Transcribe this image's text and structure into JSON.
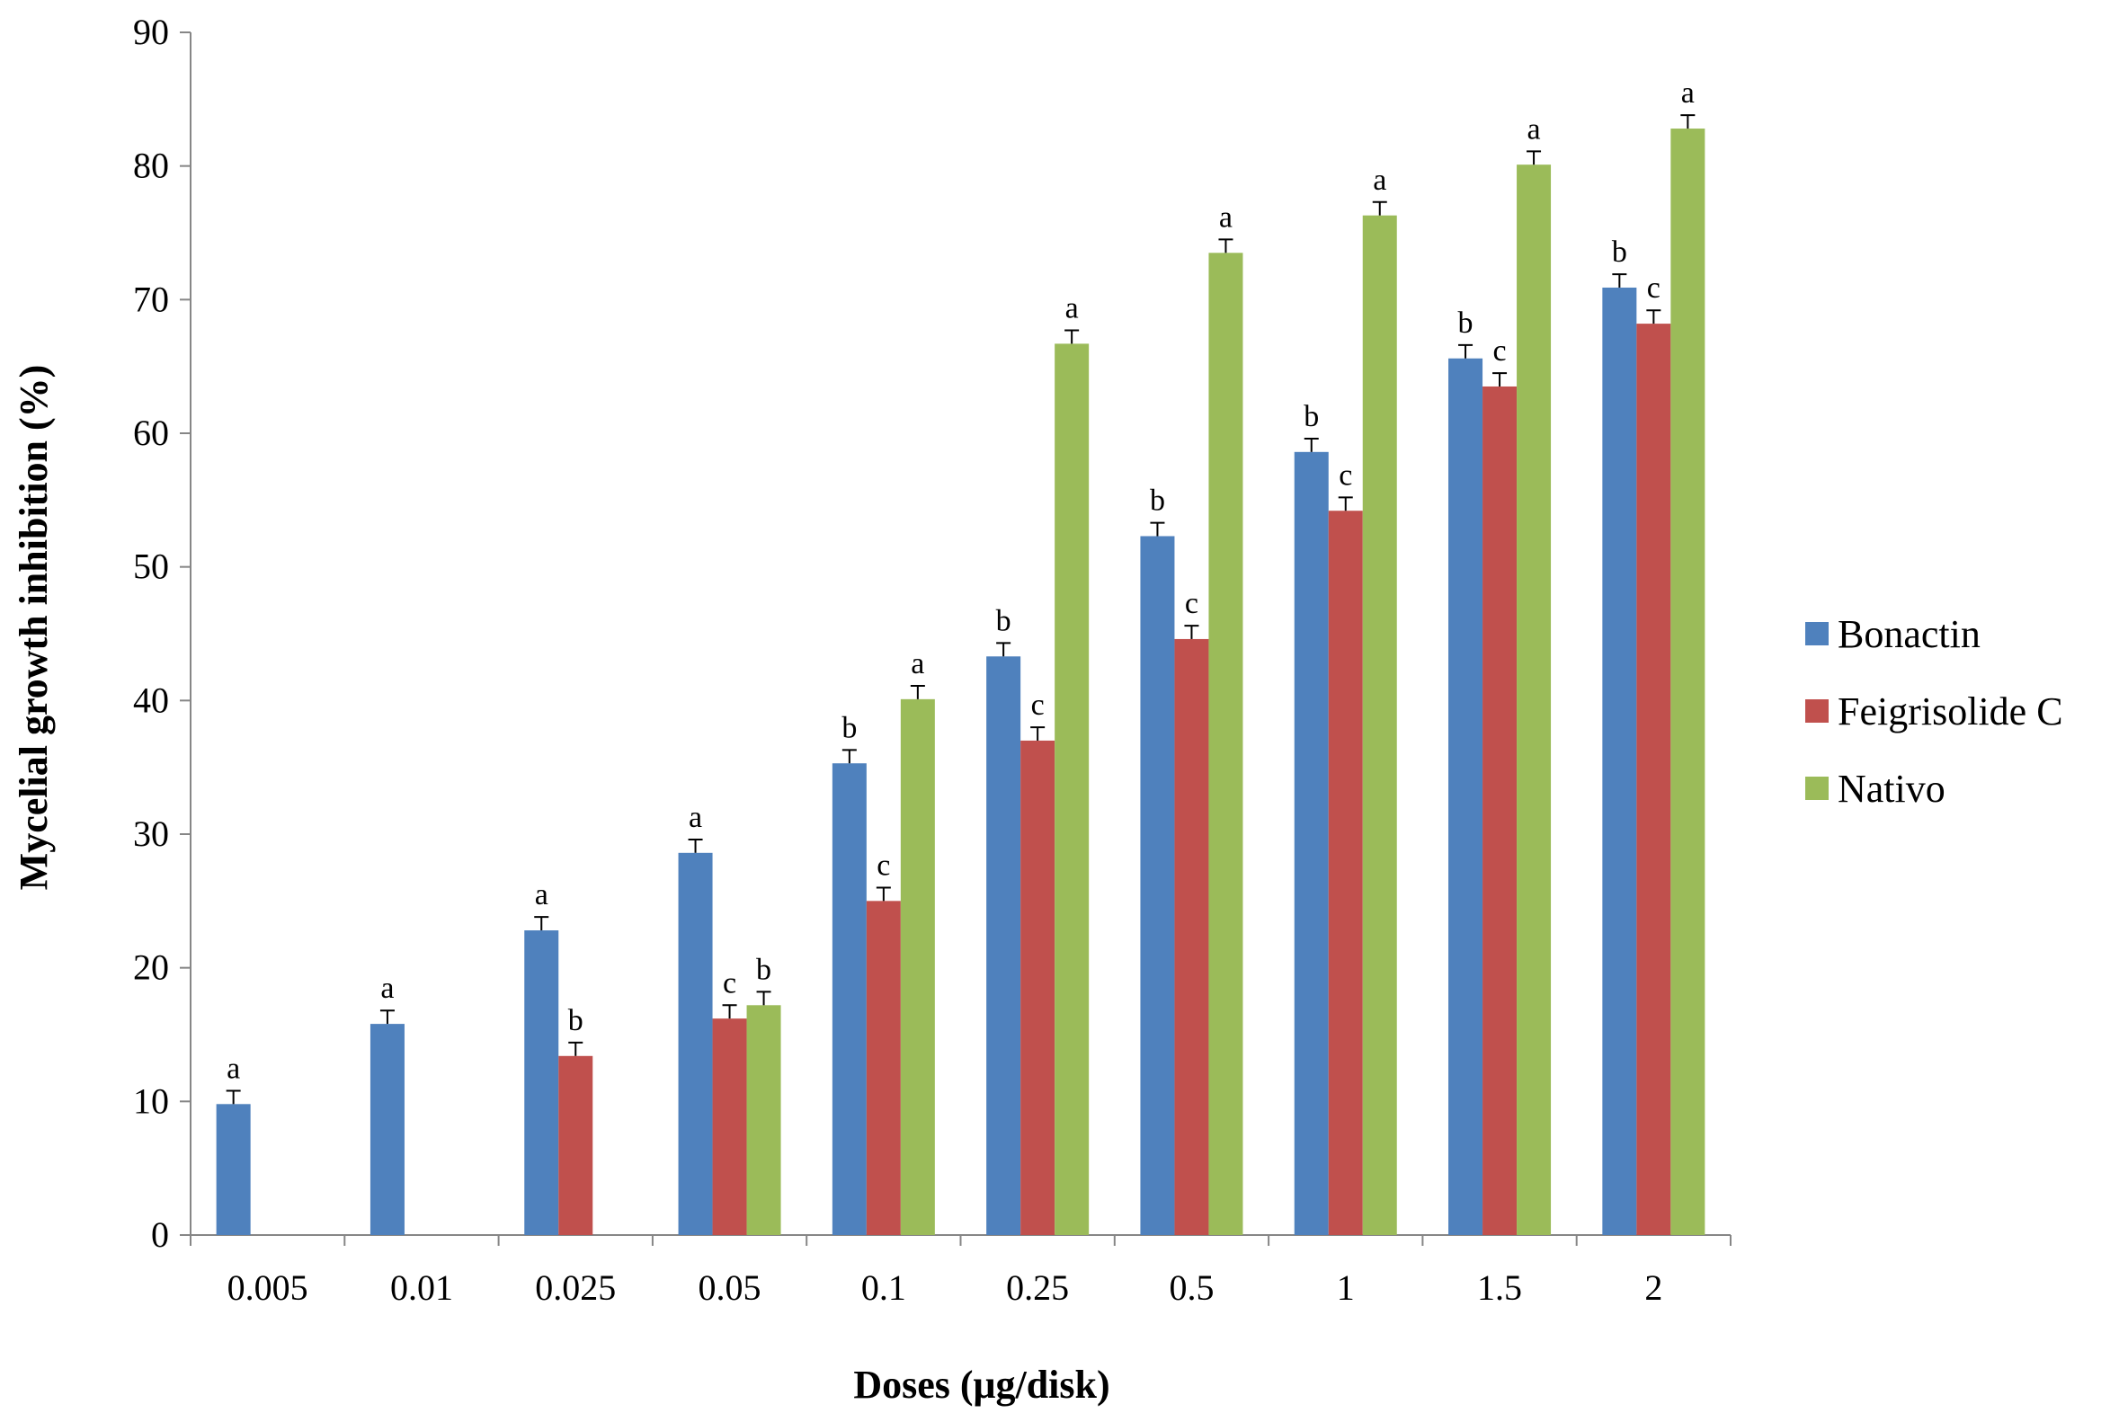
{
  "chart_data": {
    "type": "bar",
    "title": "",
    "xlabel": "Doses (μg/disk)",
    "ylabel": "Mycelial growth inhibition (%)",
    "ylim": [
      0,
      90
    ],
    "yticks": [
      0,
      10,
      20,
      30,
      40,
      50,
      60,
      70,
      80,
      90
    ],
    "grid": false,
    "legend_position": "right",
    "categories": [
      "0.005",
      "0.01",
      "0.025",
      "0.05",
      "0.1",
      "0.25",
      "0.5",
      "1",
      "1.5",
      "2"
    ],
    "series": [
      {
        "name": "Bonactin",
        "color": "#4f81bd",
        "values": [
          9.8,
          15.8,
          22.8,
          28.6,
          35.3,
          43.3,
          52.3,
          58.6,
          65.6,
          70.9
        ],
        "errors": [
          1.0,
          1.0,
          1.0,
          1.0,
          1.0,
          1.0,
          1.0,
          1.0,
          1.0,
          1.0
        ],
        "labels": [
          "a",
          "a",
          "a",
          "a",
          "b",
          "b",
          "b",
          "b",
          "b",
          "b"
        ]
      },
      {
        "name": "Feigrisolide C",
        "color": "#c0504d",
        "values": [
          null,
          null,
          13.4,
          16.2,
          25.0,
          37.0,
          44.6,
          54.2,
          63.5,
          68.2
        ],
        "errors": [
          null,
          null,
          1.0,
          1.0,
          1.0,
          1.0,
          1.0,
          1.0,
          1.0,
          1.0
        ],
        "labels": [
          null,
          null,
          "b",
          "c",
          "c",
          "c",
          "c",
          "c",
          "c",
          "c"
        ]
      },
      {
        "name": "Nativo",
        "color": "#9bbb59",
        "values": [
          null,
          null,
          null,
          17.2,
          40.1,
          66.7,
          73.5,
          76.3,
          80.1,
          82.8
        ],
        "errors": [
          null,
          null,
          null,
          1.0,
          1.0,
          1.0,
          1.0,
          1.0,
          1.0,
          1.0
        ],
        "labels": [
          null,
          null,
          null,
          "b",
          "a",
          "a",
          "a",
          "a",
          "a",
          "a"
        ]
      }
    ]
  }
}
